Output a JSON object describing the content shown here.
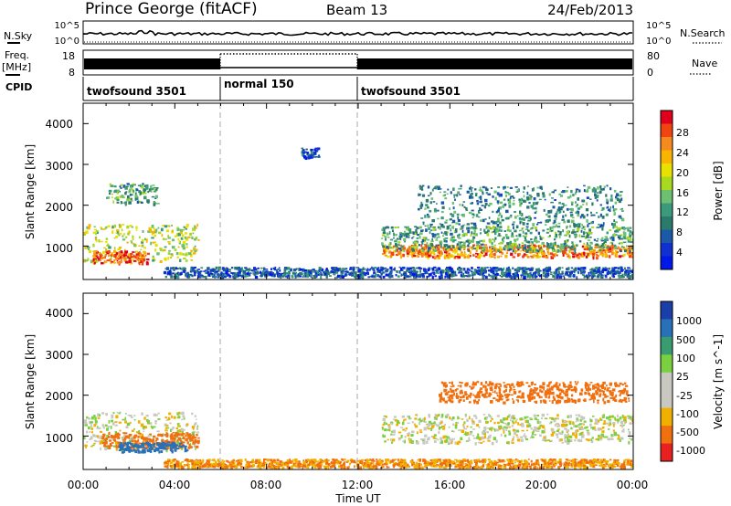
{
  "header": {
    "station": "Prince George (fitACF)",
    "beam": "Beam 13",
    "date": "24/Feb/2013"
  },
  "strip_labels": {
    "nsky": "N.Sky",
    "nsky_ticks": [
      "10^5",
      "10^0"
    ],
    "nsearch": "N.Search",
    "nsearch_ticks": [
      "10^5",
      "10^0"
    ],
    "freq_top": "Freq.",
    "freq_bottom": "[MHz]",
    "freq_ticks": [
      "18",
      "8"
    ],
    "nave": "Nave",
    "nave_ticks": [
      "80",
      "0"
    ],
    "cpid": "CPID"
  },
  "cpid_segments": [
    {
      "label": "twofsound 3501",
      "start_h": 0,
      "end_h": 6
    },
    {
      "label": "normal 150",
      "start_h": 6,
      "end_h": 12
    },
    {
      "label": "twofsound 3501",
      "start_h": 12,
      "end_h": 24
    }
  ],
  "axes": {
    "x_ticks": [
      "00:00",
      "04:00",
      "08:00",
      "12:00",
      "16:00",
      "20:00",
      "00:00"
    ],
    "x_label": "Time UT",
    "y_label": "Slant Range [km]",
    "y_ticks": [
      "4000",
      "3000",
      "2000",
      "1000"
    ]
  },
  "colorbars": {
    "power": {
      "label": "Power [dB]",
      "ticks": [
        "28",
        "24",
        "20",
        "16",
        "12",
        "8",
        "4"
      ],
      "colors": [
        "#e0001c",
        "#f04510",
        "#f58a20",
        "#f8b400",
        "#e8e000",
        "#a8d820",
        "#6cc070",
        "#3c9a7c",
        "#2c7a6c",
        "#1c5aa8",
        "#1030d0",
        "#0018e8"
      ]
    },
    "velocity": {
      "label": "Velocity [m s^-1]",
      "ticks": [
        "1000",
        "500",
        "100",
        "25",
        "-25",
        "-100",
        "-500",
        "-1000"
      ],
      "colors": [
        "#1a3fa8",
        "#2870b8",
        "#3a9a70",
        "#7ad040",
        "#c8c8c0",
        "#c8c8c0",
        "#f0b000",
        "#f07010",
        "#e82020"
      ]
    }
  },
  "chart_data": [
    {
      "type": "heatmap",
      "title": "Power",
      "xlabel": "Time UT",
      "ylabel": "Slant Range [km]",
      "xlim": [
        0,
        24
      ],
      "ylim": [
        180,
        4500
      ],
      "colorbar_label": "Power [dB]",
      "colorbar_range": [
        0,
        32
      ],
      "grid": false,
      "features": [
        {
          "name": "morning-main-echo",
          "t_start": 0,
          "t_end": 5.0,
          "range_center": 1100,
          "range_width": 450,
          "power": 18
        },
        {
          "name": "morning-strong-core",
          "t_start": 0.4,
          "t_end": 2.8,
          "range_center": 750,
          "range_width": 150,
          "power": 28
        },
        {
          "name": "morning-upper-patch",
          "t_start": 1.0,
          "t_end": 3.2,
          "range_center": 2300,
          "range_width": 250,
          "power": 12
        },
        {
          "name": "day-near-range",
          "t_start": 3.5,
          "t_end": 24,
          "range_center": 380,
          "range_width": 120,
          "power": 6
        },
        {
          "name": "midday-scatter",
          "t_start": 9.5,
          "t_end": 10.3,
          "range_center": 3300,
          "range_width": 120,
          "power": 5
        },
        {
          "name": "afternoon-main-echo",
          "t_start": 13.0,
          "t_end": 24,
          "range_center": 900,
          "range_width": 150,
          "power": 26
        },
        {
          "name": "afternoon-band",
          "t_start": 13.0,
          "t_end": 24,
          "range_center": 1200,
          "range_width": 300,
          "power": 12
        },
        {
          "name": "afternoon-upper-echo",
          "t_start": 14.5,
          "t_end": 23.5,
          "range_center": 2000,
          "range_width": 500,
          "power": 10
        }
      ]
    },
    {
      "type": "heatmap",
      "title": "Velocity",
      "xlabel": "Time UT",
      "ylabel": "Slant Range [km]",
      "xlim": [
        0,
        24
      ],
      "ylim": [
        180,
        4500
      ],
      "colorbar_label": "Velocity [m s^-1]",
      "colorbar_range": [
        -1000,
        1000
      ],
      "grid": false,
      "features": [
        {
          "name": "morning-ground-scatter",
          "t_start": 0,
          "t_end": 5.0,
          "range_center": 1150,
          "range_width": 450,
          "velocity": 0
        },
        {
          "name": "morning-receding",
          "t_start": 0.8,
          "t_end": 5.0,
          "range_center": 900,
          "range_width": 200,
          "velocity": -300
        },
        {
          "name": "morning-toward",
          "t_start": 1.5,
          "t_end": 4.5,
          "range_center": 750,
          "range_width": 120,
          "velocity": 150
        },
        {
          "name": "afternoon-ground-scatter",
          "t_start": 13.0,
          "t_end": 24,
          "range_center": 1200,
          "range_width": 350,
          "velocity": 0
        },
        {
          "name": "afternoon-receding",
          "t_start": 15.5,
          "t_end": 23.8,
          "range_center": 2100,
          "range_width": 250,
          "velocity": -300
        },
        {
          "name": "near-range-flows",
          "t_start": 3.5,
          "t_end": 24,
          "range_center": 350,
          "range_width": 100,
          "velocity": -100
        }
      ]
    }
  ]
}
